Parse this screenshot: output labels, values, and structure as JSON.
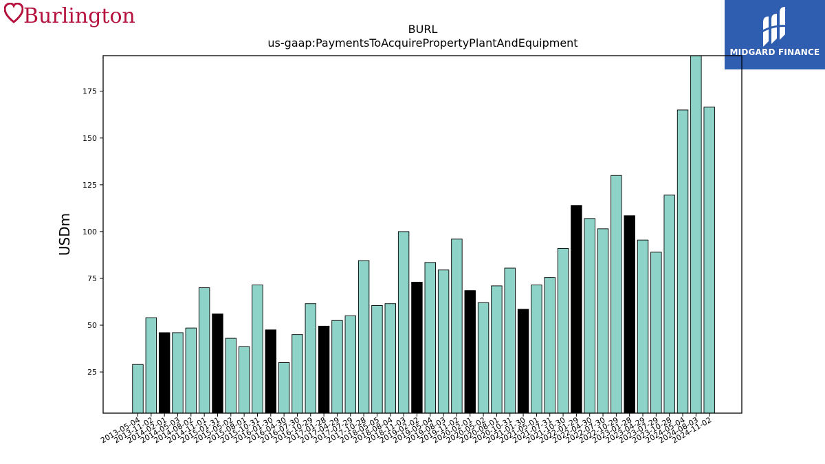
{
  "logos": {
    "left_brand": "Burlington",
    "right_brand": "MIDGARD FINANCE"
  },
  "colors": {
    "bar_default": "#8dd3c7",
    "bar_highlight": "#000000",
    "logo_left": "#b5123e",
    "logo_right_bg": "#2f5daf"
  },
  "chart_data": {
    "type": "bar",
    "title": "BURL",
    "subtitle": "us-gaap:PaymentsToAcquirePropertyPlantAndEquipment",
    "xlabel": "",
    "ylabel": "USDm",
    "ylim": [
      3,
      194
    ],
    "yticks": [
      25,
      50,
      75,
      100,
      125,
      150,
      175
    ],
    "grid": false,
    "categories": [
      "2013-05-04",
      "2013-11-02",
      "2014-02-01",
      "2014-05-03",
      "2014-08-02",
      "2014-11-01",
      "2015-01-31",
      "2015-05-02",
      "2015-08-01",
      "2015-10-31",
      "2016-01-30",
      "2016-04-30",
      "2016-07-30",
      "2016-10-29",
      "2017-01-28",
      "2017-04-29",
      "2017-07-29",
      "2017-10-28",
      "2018-05-05",
      "2018-08-04",
      "2018-11-03",
      "2019-02-02",
      "2019-05-04",
      "2019-08-03",
      "2019-11-02",
      "2020-02-01",
      "2020-05-02",
      "2020-08-01",
      "2020-10-31",
      "2021-01-30",
      "2021-05-01",
      "2021-07-31",
      "2021-10-30",
      "2022-01-29",
      "2022-04-30",
      "2022-07-30",
      "2022-10-29",
      "2023-01-28",
      "2023-04-29",
      "2023-07-29",
      "2023-10-28",
      "2024-05-04",
      "2024-08-03",
      "2024-11-02"
    ],
    "values": [
      29,
      54,
      46,
      46,
      48.5,
      70,
      56,
      43,
      38.5,
      71.5,
      47.5,
      30,
      45,
      61.5,
      49.5,
      52.5,
      55,
      84.5,
      60.5,
      61.5,
      100,
      73,
      83.5,
      79.5,
      96,
      68.5,
      62,
      71,
      80.5,
      58.5,
      71.5,
      75.5,
      91,
      114,
      107,
      101.5,
      130,
      108.5,
      95.5,
      89,
      119.5,
      165,
      195,
      166.5
    ],
    "highlight": [
      false,
      false,
      true,
      false,
      false,
      false,
      true,
      false,
      false,
      false,
      true,
      false,
      false,
      false,
      true,
      false,
      false,
      false,
      false,
      false,
      false,
      true,
      false,
      false,
      false,
      true,
      false,
      false,
      false,
      true,
      false,
      false,
      false,
      true,
      false,
      false,
      false,
      true,
      false,
      false,
      false,
      false,
      false,
      false
    ]
  }
}
